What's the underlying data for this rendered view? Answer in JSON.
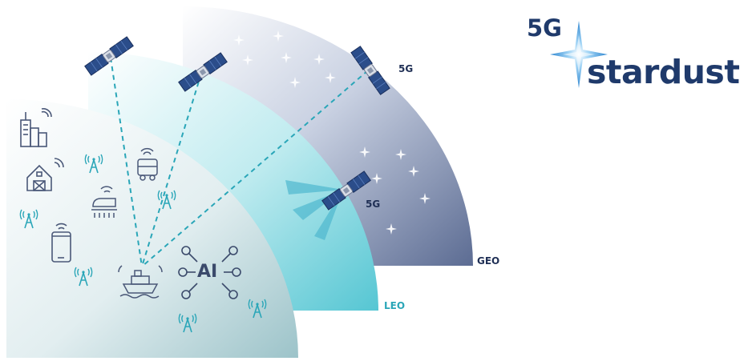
{
  "logo": {
    "prefix": "5G",
    "word": "stardust"
  },
  "labels": {
    "geo": "GEO",
    "leo": "LEO",
    "sat_5g_top": "5G",
    "sat_5g_mid": "5G",
    "ai": "AI"
  },
  "colors": {
    "navy": "#1f3a6b",
    "geo_band": "#6f7da0",
    "leo_band": "#5ccad6",
    "ground_band": "#9fc4cb",
    "accent_teal": "#2aa6b8",
    "star_blue": "#4fa8e6"
  },
  "icons": [
    "satellite-icon",
    "buildings-icon",
    "barn-icon",
    "phone-icon",
    "train-icon",
    "truck-icon",
    "ship-icon",
    "antenna-icon",
    "ai-network-icon",
    "star-sparkle-icon"
  ]
}
